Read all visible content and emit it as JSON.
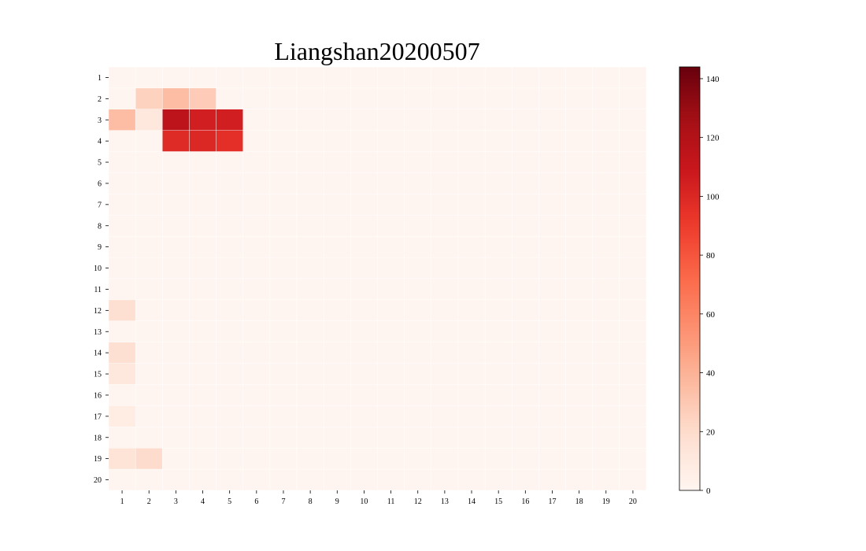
{
  "chart_data": {
    "type": "heatmap",
    "title": "Liangshan20200507",
    "xlabel": "",
    "ylabel": "",
    "x_categories": [
      "1",
      "2",
      "3",
      "4",
      "5",
      "6",
      "7",
      "8",
      "9",
      "10",
      "11",
      "12",
      "13",
      "14",
      "15",
      "16",
      "17",
      "18",
      "19",
      "20"
    ],
    "y_categories": [
      "1",
      "2",
      "3",
      "4",
      "5",
      "6",
      "7",
      "8",
      "9",
      "10",
      "11",
      "12",
      "13",
      "14",
      "15",
      "16",
      "17",
      "18",
      "19",
      "20"
    ],
    "values": [
      [
        0,
        0,
        0,
        0,
        0,
        0,
        0,
        0,
        0,
        0,
        0,
        0,
        0,
        0,
        0,
        0,
        0,
        0,
        0,
        0
      ],
      [
        0,
        25,
        35,
        28,
        0,
        0,
        0,
        0,
        0,
        0,
        0,
        0,
        0,
        0,
        0,
        0,
        0,
        0,
        0,
        0
      ],
      [
        35,
        12,
        115,
        105,
        105,
        0,
        0,
        0,
        0,
        0,
        0,
        0,
        0,
        0,
        0,
        0,
        0,
        0,
        0,
        0
      ],
      [
        0,
        0,
        98,
        100,
        96,
        0,
        0,
        0,
        0,
        0,
        0,
        0,
        0,
        0,
        0,
        0,
        0,
        0,
        0,
        0
      ],
      [
        0,
        0,
        0,
        0,
        0,
        0,
        0,
        0,
        0,
        0,
        0,
        0,
        0,
        0,
        0,
        0,
        0,
        0,
        0,
        0
      ],
      [
        0,
        0,
        0,
        0,
        0,
        0,
        0,
        0,
        0,
        0,
        0,
        0,
        0,
        0,
        0,
        0,
        0,
        0,
        0,
        0
      ],
      [
        0,
        0,
        0,
        0,
        0,
        0,
        0,
        0,
        0,
        0,
        0,
        0,
        0,
        0,
        0,
        0,
        0,
        0,
        0,
        0
      ],
      [
        0,
        0,
        0,
        0,
        0,
        0,
        0,
        0,
        0,
        0,
        0,
        0,
        0,
        0,
        0,
        0,
        0,
        0,
        0,
        0
      ],
      [
        0,
        0,
        0,
        0,
        0,
        0,
        0,
        0,
        0,
        0,
        0,
        0,
        0,
        0,
        0,
        0,
        0,
        0,
        0,
        0
      ],
      [
        0,
        0,
        0,
        0,
        0,
        0,
        0,
        0,
        0,
        0,
        0,
        0,
        0,
        0,
        0,
        0,
        0,
        0,
        0,
        0
      ],
      [
        0,
        0,
        0,
        0,
        0,
        0,
        0,
        0,
        0,
        0,
        0,
        0,
        0,
        0,
        0,
        0,
        0,
        0,
        0,
        0
      ],
      [
        18,
        0,
        0,
        0,
        0,
        0,
        0,
        0,
        0,
        0,
        0,
        0,
        0,
        0,
        0,
        0,
        0,
        0,
        0,
        0
      ],
      [
        0,
        0,
        0,
        0,
        0,
        0,
        0,
        0,
        0,
        0,
        0,
        0,
        0,
        0,
        0,
        0,
        0,
        0,
        0,
        0
      ],
      [
        18,
        0,
        0,
        0,
        0,
        0,
        0,
        0,
        0,
        0,
        0,
        0,
        0,
        0,
        0,
        0,
        0,
        0,
        0,
        0
      ],
      [
        12,
        0,
        0,
        0,
        0,
        0,
        0,
        0,
        0,
        0,
        0,
        0,
        0,
        0,
        0,
        0,
        0,
        0,
        0,
        0
      ],
      [
        0,
        0,
        0,
        0,
        0,
        0,
        0,
        0,
        0,
        0,
        0,
        0,
        0,
        0,
        0,
        0,
        0,
        0,
        0,
        0
      ],
      [
        8,
        0,
        0,
        0,
        0,
        0,
        0,
        0,
        0,
        0,
        0,
        0,
        0,
        0,
        0,
        0,
        0,
        0,
        0,
        0
      ],
      [
        0,
        0,
        0,
        0,
        0,
        0,
        0,
        0,
        0,
        0,
        0,
        0,
        0,
        0,
        0,
        0,
        0,
        0,
        0,
        0
      ],
      [
        15,
        20,
        0,
        0,
        0,
        0,
        0,
        0,
        0,
        0,
        0,
        0,
        0,
        0,
        0,
        0,
        0,
        0,
        0,
        0
      ],
      [
        0,
        0,
        0,
        0,
        0,
        0,
        0,
        0,
        0,
        0,
        0,
        0,
        0,
        0,
        0,
        0,
        0,
        0,
        0,
        0
      ]
    ],
    "colormap": "Reds",
    "color_range": [
      0,
      144
    ],
    "colorbar_ticks": [
      0,
      20,
      40,
      60,
      80,
      100,
      120,
      140
    ],
    "colorbar_tick_labels": [
      "0",
      "20",
      "40",
      "60",
      "80",
      "100",
      "120",
      "140"
    ],
    "colors": {
      "low": "#fff5f0",
      "high": "#67000d",
      "cell_border": "#ffffff"
    }
  }
}
